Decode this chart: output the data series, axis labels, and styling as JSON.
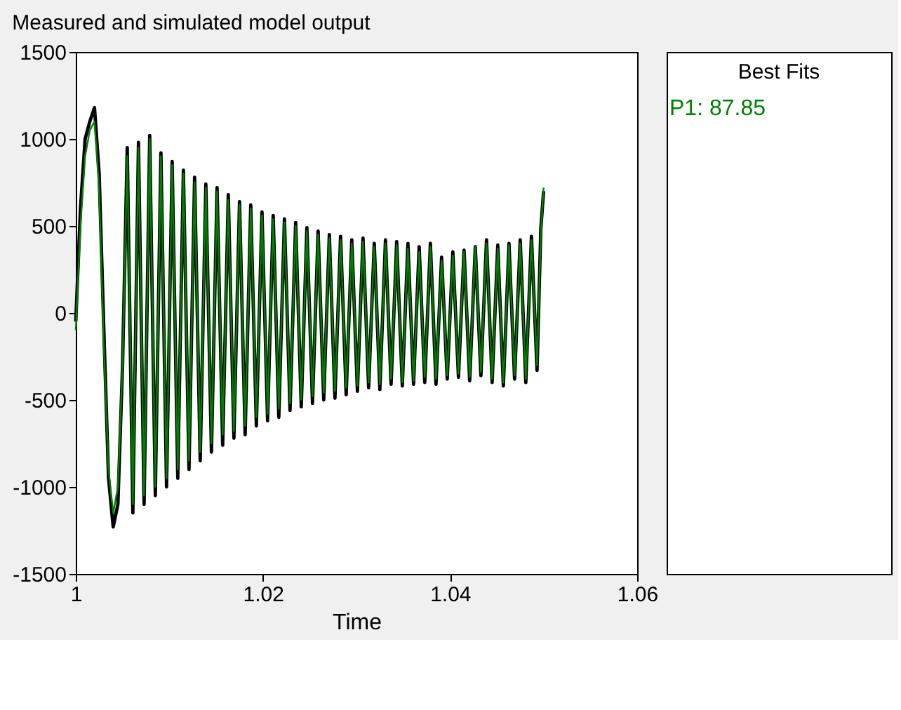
{
  "chart_data": {
    "type": "line",
    "title": "Measured and simulated model output",
    "xlabel": "Time",
    "legend_title": "Best Fits",
    "legend": "right",
    "grid": false,
    "x": [
      1.0,
      1.0005,
      1.001,
      1.0015,
      1.002,
      1.0025,
      1.003,
      1.0035,
      1.004,
      1.0045,
      1.005,
      1.0055,
      1.0061,
      1.0067,
      1.0073,
      1.0079,
      1.0085,
      1.0091,
      1.0097,
      1.0103,
      1.0109,
      1.0115,
      1.0121,
      1.0127,
      1.0133,
      1.0139,
      1.0145,
      1.0151,
      1.0157,
      1.0163,
      1.0169,
      1.0175,
      1.0181,
      1.0187,
      1.0193,
      1.0199,
      1.0205,
      1.0211,
      1.0217,
      1.0223,
      1.0229,
      1.0235,
      1.0241,
      1.0247,
      1.0253,
      1.0259,
      1.0265,
      1.0271,
      1.0277,
      1.0283,
      1.0289,
      1.0295,
      1.0301,
      1.0307,
      1.0313,
      1.0319,
      1.0325,
      1.0331,
      1.0337,
      1.0343,
      1.0349,
      1.0355,
      1.0361,
      1.0367,
      1.0373,
      1.0379,
      1.0385,
      1.0391,
      1.0397,
      1.0403,
      1.0409,
      1.0415,
      1.0421,
      1.0427,
      1.0433,
      1.0439,
      1.0445,
      1.0451,
      1.0457,
      1.0463,
      1.0469,
      1.0475,
      1.0481,
      1.0487,
      1.0493,
      1.0497,
      1.05
    ],
    "series": [
      {
        "color": "#000000",
        "values": [
          -50,
          600,
          1000,
          1100,
          1180,
          800,
          -100,
          -950,
          -1230,
          -1100,
          -300,
          950,
          -1150,
          980,
          -1100,
          1020,
          -1050,
          920,
          -1000,
          870,
          -950,
          820,
          -900,
          780,
          -850,
          740,
          -800,
          720,
          -760,
          680,
          -720,
          640,
          -700,
          620,
          -650,
          580,
          -620,
          560,
          -600,
          540,
          -560,
          520,
          -540,
          490,
          -520,
          470,
          -500,
          450,
          -490,
          440,
          -470,
          420,
          -450,
          430,
          -430,
          400,
          -440,
          420,
          -410,
          410,
          -420,
          400,
          -410,
          380,
          -400,
          400,
          -410,
          320,
          -380,
          350,
          -370,
          360,
          -390,
          380,
          -360,
          420,
          -400,
          390,
          -420,
          400,
          -380,
          420,
          -400,
          440,
          -330,
          480,
          700
        ]
      },
      {
        "name": "P1: 87.85",
        "color": "#008000",
        "values": [
          -100,
          500,
          900,
          1050,
          1100,
          700,
          -200,
          -900,
          -1150,
          -1000,
          -300,
          900,
          -1100,
          950,
          -1050,
          1000,
          -1000,
          900,
          -950,
          850,
          -900,
          800,
          -850,
          750,
          -800,
          720,
          -750,
          700,
          -700,
          650,
          -680,
          620,
          -650,
          600,
          -600,
          560,
          -580,
          540,
          -550,
          520,
          -520,
          500,
          -500,
          470,
          -480,
          450,
          -460,
          430,
          -450,
          420,
          -430,
          400,
          -420,
          410,
          -400,
          380,
          -410,
          400,
          -380,
          390,
          -400,
          370,
          -390,
          350,
          -370,
          380,
          -380,
          300,
          -360,
          330,
          -350,
          350,
          -370,
          380,
          -340,
          400,
          -380,
          370,
          -400,
          390,
          -360,
          400,
          -380,
          420,
          -300,
          450,
          720
        ]
      }
    ],
    "xlim": [
      1,
      1.06
    ],
    "xticks": [
      1,
      1.02,
      1.04,
      1.06
    ],
    "ylim": [
      -1500,
      1500
    ],
    "yticks": [
      -1500,
      -1000,
      -500,
      0,
      500,
      1000,
      1500
    ]
  }
}
